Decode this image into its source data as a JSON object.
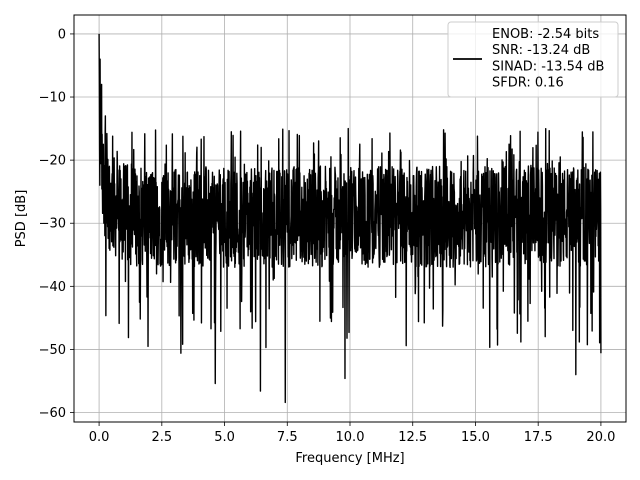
{
  "chart_data": {
    "type": "line",
    "title": "",
    "xlabel": "Frequency [MHz]",
    "ylabel": "PSD [dB]",
    "xlim": [
      -1.0,
      21.0
    ],
    "ylim": [
      -61.5,
      3.0
    ],
    "grid": true,
    "legend_position": "top-right",
    "x_ticks": [
      0.0,
      2.5,
      5.0,
      7.5,
      10.0,
      12.5,
      15.0,
      17.5,
      20.0
    ],
    "x_tick_labels": [
      "0.0",
      "2.5",
      "5.0",
      "7.5",
      "10.0",
      "12.5",
      "15.0",
      "17.5",
      "20.0"
    ],
    "y_ticks": [
      0,
      -10,
      -20,
      -30,
      -40,
      -50,
      -60
    ],
    "y_tick_labels": [
      "0",
      "−10",
      "−20",
      "−30",
      "−40",
      "−50",
      "−60"
    ],
    "series": [
      {
        "color": "#000000",
        "x_start": 0.0,
        "x_end": 20.0,
        "baseline_db": -29,
        "peak_db": 0.0,
        "max_db": -15.0,
        "min_db": -58.4
      }
    ],
    "legend_lines": [
      "ENOB: -2.54 bits",
      "SNR: -13.24 dB",
      "SINAD: -13.54 dB",
      "SFDR: 0.16"
    ],
    "colors": {
      "line": "#000000",
      "grid": "#b0b0b0",
      "axes": "#000000"
    }
  }
}
